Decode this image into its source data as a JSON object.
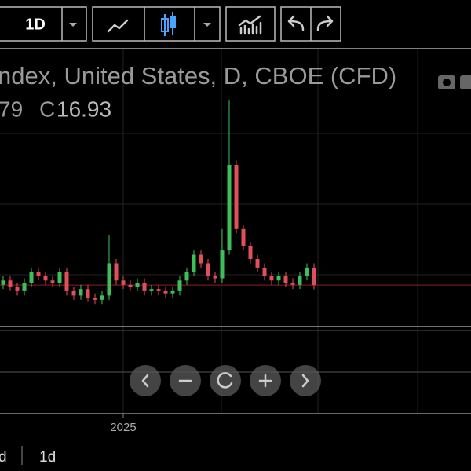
{
  "toolbar": {
    "interval": "1D"
  },
  "chart_data": {
    "type": "candlestick",
    "title": "ndex, United States, D, CBOE (CFD)",
    "legend_fragment": "79",
    "close_label": "C",
    "close_value": 16.93,
    "open": [
      17,
      18,
      16.5,
      15.5,
      17.5,
      20,
      19,
      18,
      17.5,
      20,
      15.5,
      14.5,
      16,
      14,
      13.5,
      14.5,
      22,
      18,
      17,
      16.5,
      17.5,
      15.5,
      16,
      15.5,
      15,
      15.5,
      18,
      20,
      24,
      22,
      19,
      18.5,
      25,
      45,
      30,
      26,
      23,
      21,
      19,
      18,
      19,
      17.5,
      17,
      19,
      21
    ],
    "high": [
      19,
      19,
      17.5,
      18.5,
      21,
      21,
      20,
      19,
      21,
      21,
      16.5,
      17,
      17,
      15,
      15.5,
      28.5,
      23,
      19,
      18,
      18.5,
      18.5,
      17,
      17,
      16.5,
      16.5,
      19,
      21,
      25,
      25,
      23,
      20,
      30,
      60,
      46,
      31,
      27,
      24,
      22,
      20,
      20,
      20,
      18.5,
      20,
      22,
      22
    ],
    "low": [
      16,
      15.5,
      14.5,
      14.5,
      16.5,
      18,
      17,
      16.5,
      16.5,
      14.5,
      13.5,
      13.5,
      13,
      12.5,
      12.5,
      13.5,
      17,
      16,
      15.5,
      15.5,
      14.5,
      14.5,
      14.5,
      14,
      14,
      14.5,
      17,
      19,
      21,
      18,
      17.5,
      17.5,
      24,
      29,
      25,
      22,
      20,
      18,
      17,
      17,
      16.5,
      16,
      16,
      18,
      15.93
    ],
    "close": [
      18,
      16.5,
      15.5,
      17.5,
      20,
      19,
      18,
      17.5,
      20,
      15.5,
      14.5,
      16,
      14,
      13.5,
      14.5,
      22,
      18,
      17,
      16.5,
      17.5,
      15.5,
      16,
      15.5,
      15,
      15.5,
      18,
      20,
      24,
      22,
      19,
      18.5,
      25,
      45,
      30,
      26,
      23,
      21,
      19,
      18,
      19,
      17.5,
      17,
      19,
      21,
      16.93
    ],
    "up_color": "#3fbf5a",
    "down_color": "#e0505a",
    "ylim": [
      6.5,
      72.5
    ],
    "x_tick_label": "2025"
  },
  "bottom_bar": {
    "ranges": [
      "d",
      "1d"
    ]
  }
}
